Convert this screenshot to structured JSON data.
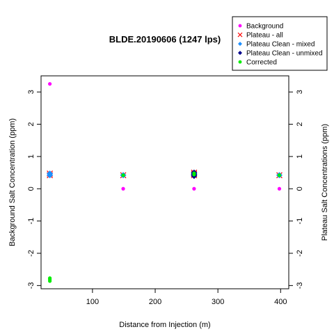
{
  "chart_data": {
    "type": "scatter",
    "title": "BLDE.20190606 (1247 lps)",
    "xlabel": "Distance from Injection (m)",
    "ylabel": "Background Salt Concentration (ppm)",
    "ylabel_right": "Plateau Salt Concentrations (ppm)",
    "xlim": [
      18,
      413
    ],
    "ylim": [
      -3.1,
      3.5
    ],
    "x_ticks": [
      "100",
      "200",
      "300",
      "400"
    ],
    "x_tick_values": [
      100,
      200,
      300,
      400
    ],
    "y_ticks": [
      "-3",
      "-2",
      "-1",
      "0",
      "1",
      "2",
      "3"
    ],
    "y_tick_values": [
      -3,
      -2,
      -1,
      0,
      1,
      2,
      3
    ],
    "legend_position": "top-right",
    "series": [
      {
        "name": "Background",
        "marker": "dot",
        "color": "#ff00ff",
        "x": [
          32,
          149,
          262,
          398
        ],
        "y": [
          3.25,
          0.0,
          0.0,
          0.0
        ]
      },
      {
        "name": "Plateau - all",
        "marker": "cross",
        "color": "#ff0000",
        "x": [
          32,
          32,
          149,
          262,
          262,
          262,
          398
        ],
        "y": [
          0.42,
          0.47,
          0.42,
          0.42,
          0.46,
          0.5,
          0.42
        ]
      },
      {
        "name": "Plateau Clean - mixed",
        "marker": "diamond",
        "color": "#1e90ff",
        "x": [
          32,
          32,
          149,
          262,
          262,
          398
        ],
        "y": [
          0.42,
          0.47,
          0.42,
          0.44,
          0.48,
          0.42
        ]
      },
      {
        "name": "Plateau Clean - unmixed",
        "marker": "diamond",
        "color": "#00008b",
        "x": [
          262,
          262,
          262
        ],
        "y": [
          0.4,
          0.45,
          0.5
        ]
      },
      {
        "name": "Corrected",
        "marker": "dot",
        "color": "#00ee00",
        "x": [
          32,
          32,
          32,
          149,
          262,
          262,
          398
        ],
        "y": [
          -2.77,
          -2.81,
          -2.86,
          0.42,
          0.44,
          0.48,
          0.42
        ]
      }
    ]
  }
}
